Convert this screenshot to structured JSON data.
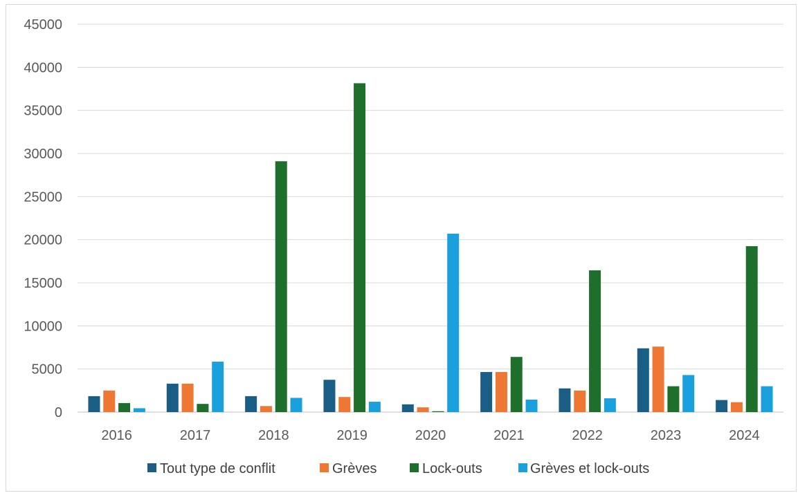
{
  "chart_data": {
    "type": "bar",
    "categories": [
      "2016",
      "2017",
      "2018",
      "2019",
      "2020",
      "2021",
      "2022",
      "2023",
      "2024"
    ],
    "series": [
      {
        "name": "Tout type de conflit",
        "color": "#1a5e86",
        "values": [
          1850,
          3300,
          1850,
          3750,
          900,
          4650,
          2750,
          7400,
          1400
        ]
      },
      {
        "name": "Grèves",
        "color": "#ee7733",
        "values": [
          2500,
          3300,
          700,
          1750,
          550,
          4650,
          2500,
          7600,
          1150
        ]
      },
      {
        "name": "Lock-outs",
        "color": "#1e6e2c",
        "values": [
          1050,
          950,
          29100,
          38150,
          100,
          6400,
          16450,
          3000,
          19250
        ]
      },
      {
        "name": "Grèves et lock-outs",
        "color": "#1aa0dc",
        "values": [
          450,
          5850,
          1650,
          1200,
          20700,
          1450,
          1600,
          4300,
          3000
        ]
      }
    ],
    "y_ticks": [
      "0",
      "5000",
      "10000",
      "15000",
      "20000",
      "25000",
      "30000",
      "35000",
      "40000",
      "45000"
    ],
    "ylim": [
      0,
      45000
    ],
    "grid": true,
    "legend_position": "bottom"
  }
}
